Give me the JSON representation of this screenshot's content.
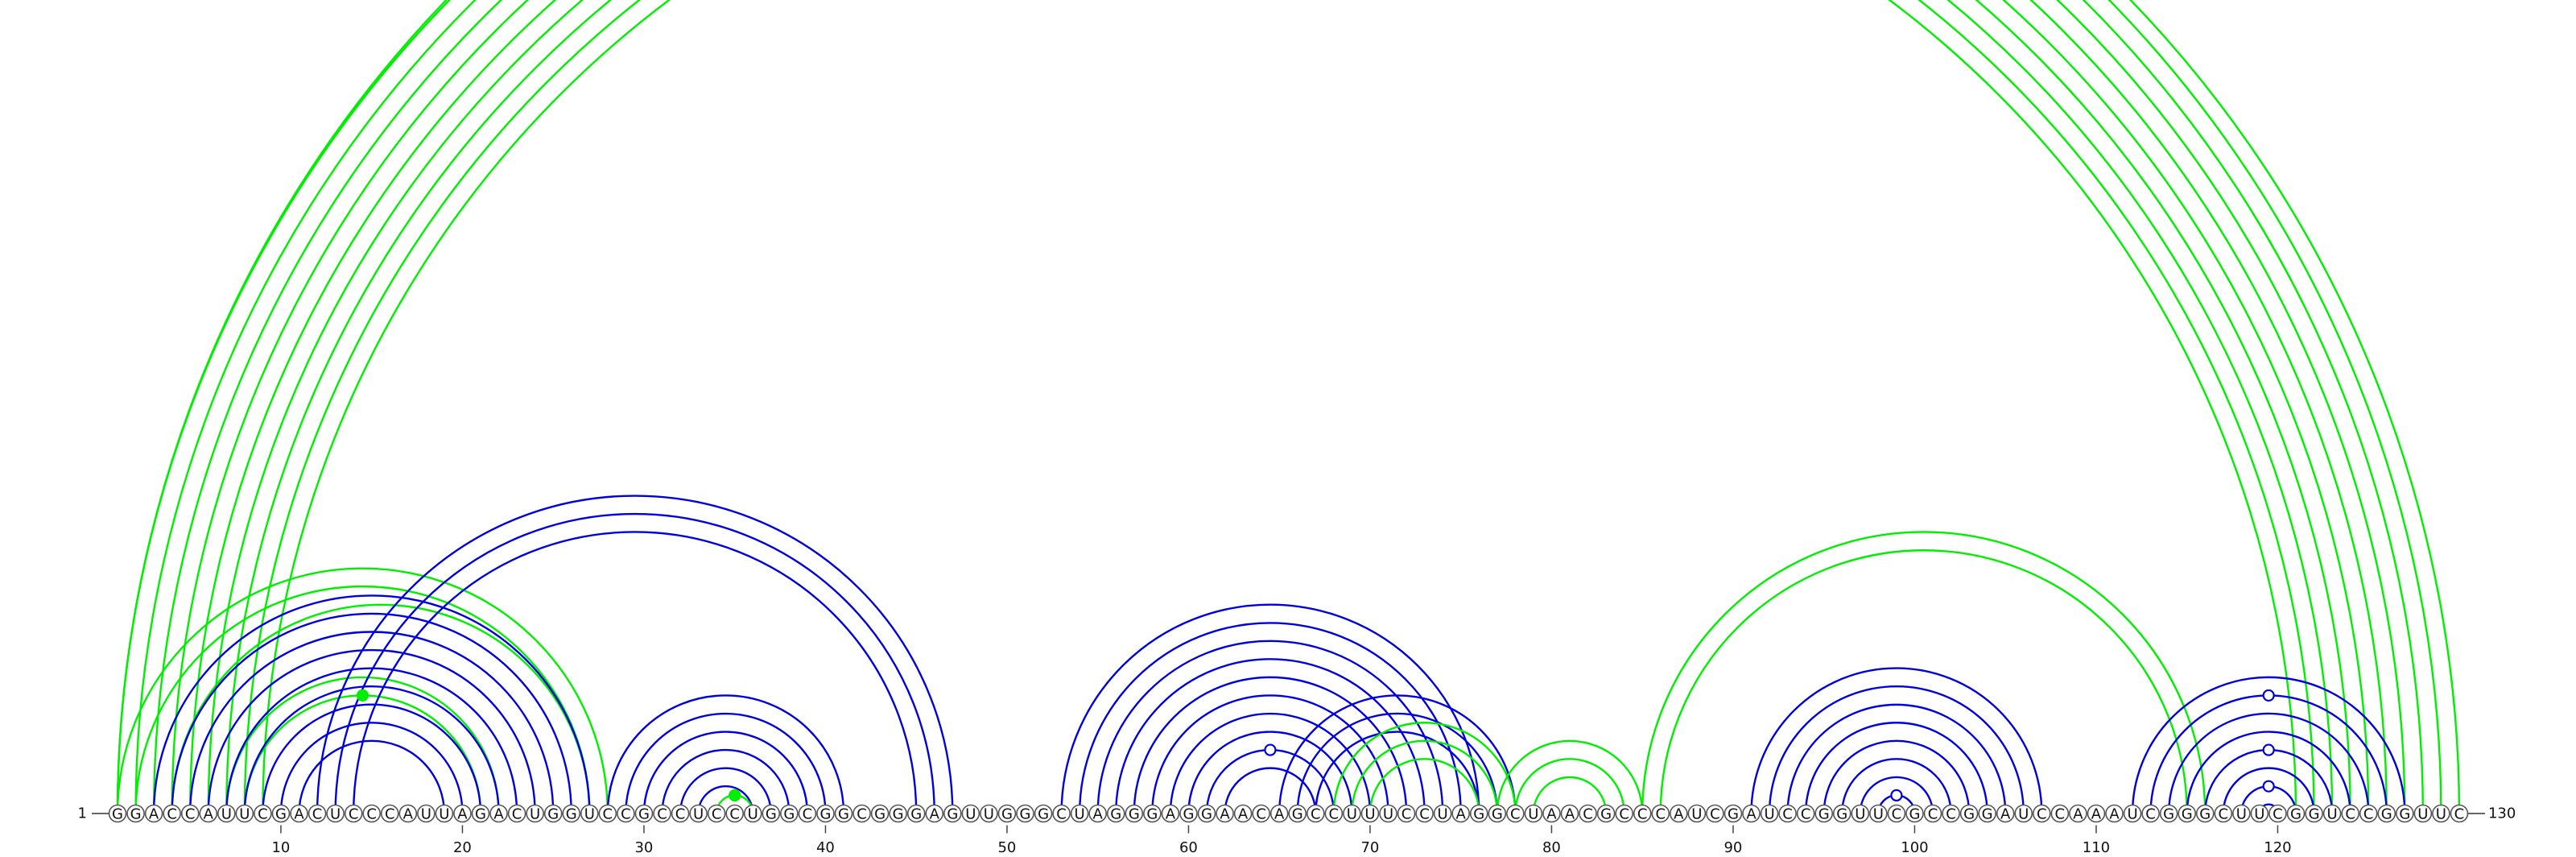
{
  "sequence": "GGACCAUUCGACUCCCAUUAGACUGGUCCGCCUCCUGGCGGCGGGAGUUGGGCUAGGGAGGAACAGCCUUUCCUAGGCUAACGCCCAUCGAUCCGGUUCGCCGGAUCCAAAUCGGGCUUCGGUCCGGUUC",
  "start_label": "1",
  "end_label": "130",
  "ticks": [
    "10",
    "20",
    "30",
    "40",
    "50",
    "60",
    "70",
    "80",
    "90",
    "100",
    "110",
    "120"
  ],
  "colors": {
    "green": "#00ee00",
    "blue": "#0000dd"
  },
  "arc_groups": [
    {
      "color": "green",
      "pairs": [
        [
          1,
          130
        ],
        [
          1,
          129
        ],
        [
          2,
          128
        ],
        [
          3,
          127
        ],
        [
          4,
          126
        ],
        [
          5,
          125
        ],
        [
          6,
          124
        ],
        [
          7,
          123
        ],
        [
          8,
          122
        ],
        [
          9,
          121
        ]
      ]
    },
    {
      "color": "green",
      "pairs": [
        [
          1,
          28
        ],
        [
          2,
          27
        ],
        [
          4,
          27
        ]
      ]
    },
    {
      "color": "green",
      "pairs": [
        [
          7,
          22
        ],
        [
          8,
          21
        ]
      ]
    },
    {
      "color": "blue",
      "pairs": [
        [
          3,
          27
        ],
        [
          4,
          26
        ],
        [
          5,
          25
        ],
        [
          6,
          24
        ],
        [
          7,
          23
        ],
        [
          8,
          22
        ],
        [
          9,
          21
        ],
        [
          10,
          20
        ],
        [
          11,
          19
        ]
      ]
    },
    {
      "color": "blue",
      "pairs": [
        [
          12,
          47
        ],
        [
          13,
          46
        ],
        [
          14,
          45
        ]
      ]
    },
    {
      "color": "blue",
      "pairs": [
        [
          28,
          41
        ],
        [
          29,
          40
        ],
        [
          30,
          39
        ],
        [
          31,
          38
        ],
        [
          32,
          37
        ],
        [
          33,
          36
        ]
      ]
    },
    {
      "color": "green",
      "pairs": [
        [
          34,
          36
        ]
      ]
    },
    {
      "color": "blue",
      "pairs": [
        [
          53,
          76
        ],
        [
          54,
          75
        ],
        [
          55,
          74
        ],
        [
          56,
          73
        ],
        [
          57,
          72
        ],
        [
          58,
          71
        ],
        [
          59,
          70
        ],
        [
          60,
          69
        ],
        [
          61,
          68
        ],
        [
          62,
          67
        ]
      ]
    },
    {
      "color": "blue",
      "pairs": [
        [
          65,
          78
        ],
        [
          66,
          77
        ],
        [
          67,
          76
        ]
      ]
    },
    {
      "color": "green",
      "pairs": [
        [
          68,
          78
        ],
        [
          69,
          77
        ],
        [
          70,
          76
        ]
      ]
    },
    {
      "color": "green",
      "pairs": [
        [
          77,
          85
        ],
        [
          78,
          84
        ],
        [
          79,
          83
        ]
      ]
    },
    {
      "color": "green",
      "pairs": [
        [
          85,
          116
        ],
        [
          86,
          115
        ]
      ]
    },
    {
      "color": "blue",
      "pairs": [
        [
          91,
          107
        ],
        [
          92,
          106
        ],
        [
          93,
          105
        ],
        [
          94,
          104
        ],
        [
          95,
          103
        ],
        [
          96,
          102
        ],
        [
          97,
          101
        ],
        [
          98,
          100
        ]
      ]
    },
    {
      "color": "blue",
      "pairs": [
        [
          112,
          127
        ],
        [
          113,
          126
        ],
        [
          114,
          125
        ],
        [
          115,
          124
        ],
        [
          116,
          123
        ],
        [
          117,
          122
        ],
        [
          118,
          121
        ],
        [
          119,
          120
        ]
      ]
    }
  ],
  "markers": [
    {
      "pair": [
        1,
        130
      ],
      "color": "green",
      "filled": false
    },
    {
      "pair": [
        8,
        21
      ],
      "color": "green",
      "filled": true
    },
    {
      "pair": [
        34,
        36
      ],
      "color": "green",
      "filled": true
    },
    {
      "pair": [
        61,
        68
      ],
      "color": "blue",
      "filled": false
    },
    {
      "pair": [
        98,
        100
      ],
      "color": "blue",
      "filled": false
    },
    {
      "pair": [
        113,
        126
      ],
      "color": "blue",
      "filled": false
    },
    {
      "pair": [
        116,
        123
      ],
      "color": "blue",
      "filled": false
    },
    {
      "pair": [
        118,
        121
      ],
      "color": "blue",
      "filled": false
    }
  ]
}
